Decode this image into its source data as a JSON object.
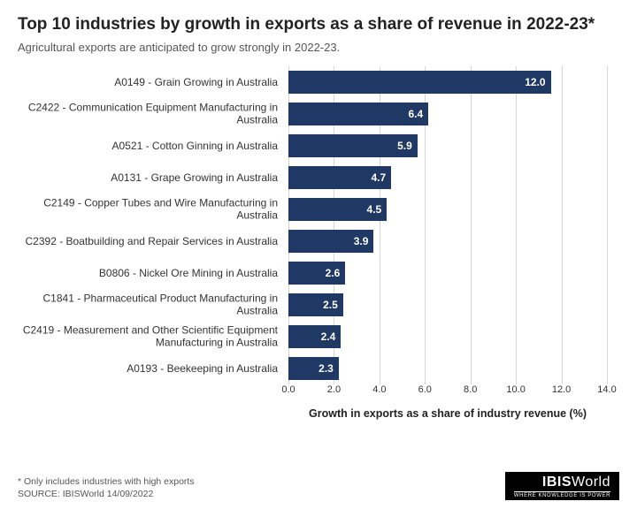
{
  "title": "Top 10 industries by growth in exports as a share of revenue in 2022-23*",
  "subtitle": "Agricultural exports are anticipated to grow strongly in 2022-23.",
  "chart": {
    "type": "bar_horizontal",
    "bar_color": "#1f3864",
    "grid_color": "#d5d5d5",
    "background_color": "#ffffff",
    "value_label_color": "#ffffff",
    "category_color": "#333333",
    "x_axis": {
      "title": "Growth in exports as a share of industry revenue (%)",
      "min": 0.0,
      "max": 14.0,
      "tick_step": 2.0,
      "ticks": [
        "0.0",
        "2.0",
        "4.0",
        "6.0",
        "8.0",
        "10.0",
        "12.0",
        "14.0"
      ]
    },
    "bars": [
      {
        "label": "A0149 - Grain Growing in Australia",
        "value": 12.0,
        "display": "12.0"
      },
      {
        "label": "C2422 - Communication Equipment Manufacturing in Australia",
        "value": 6.4,
        "display": "6.4"
      },
      {
        "label": "A0521 - Cotton Ginning in Australia",
        "value": 5.9,
        "display": "5.9"
      },
      {
        "label": "A0131 - Grape Growing in Australia",
        "value": 4.7,
        "display": "4.7"
      },
      {
        "label": "C2149 - Copper Tubes and Wire Manufacturing in Australia",
        "value": 4.5,
        "display": "4.5"
      },
      {
        "label": "C2392 - Boatbuilding and Repair Services in Australia",
        "value": 3.9,
        "display": "3.9"
      },
      {
        "label": "B0806 - Nickel Ore Mining in Australia",
        "value": 2.6,
        "display": "2.6"
      },
      {
        "label": "C1841 - Pharmaceutical Product Manufacturing in Australia",
        "value": 2.5,
        "display": "2.5"
      },
      {
        "label": "C2419 - Measurement and Other Scientific Equipment Manufacturing in Australia",
        "value": 2.4,
        "display": "2.4"
      },
      {
        "label": "A0193 - Beekeeping in Australia",
        "value": 2.3,
        "display": "2.3"
      }
    ]
  },
  "footnote": "* Only includes industries with high exports",
  "source": "SOURCE: IBISWorld 14/09/2022",
  "logo": {
    "brand_a": "IBIS",
    "brand_b": "World",
    "tagline": "WHERE KNOWLEDGE IS POWER"
  }
}
